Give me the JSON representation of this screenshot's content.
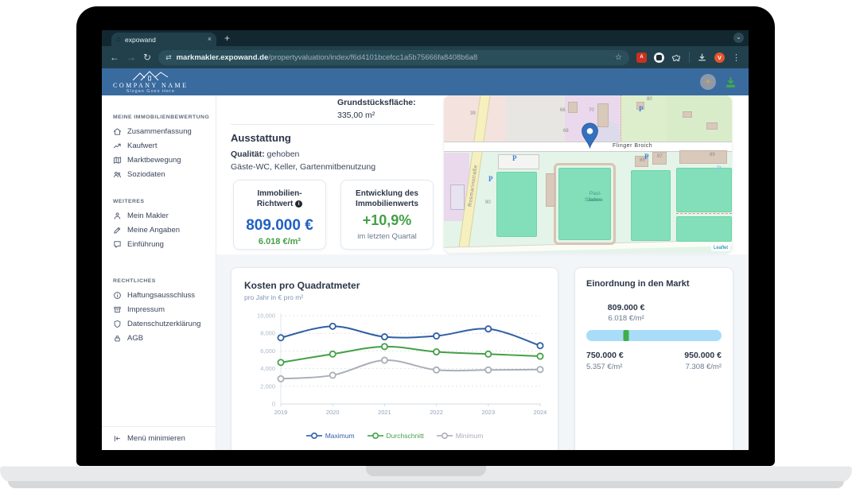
{
  "browser": {
    "tab_title": "expowand",
    "url_domain": "markmakler.expowand.de",
    "url_path": "/propertyvaluation/index/f6d4101bcefcc1a5b75666fa8408b6a8",
    "avatar_initial": "V",
    "pdf_ext_label": "A"
  },
  "header": {
    "company": "COMPANY NAME",
    "slogan": "Slogan Goes Here"
  },
  "sidebar": {
    "sections": [
      {
        "title": "MEINE IMMOBILIENBEWERTUNG",
        "items": [
          {
            "label": "Zusammenfassung",
            "icon": "home-icon"
          },
          {
            "label": "Kaufwert",
            "icon": "trend-icon"
          },
          {
            "label": "Marktbewegung",
            "icon": "map-icon"
          },
          {
            "label": "Soziodaten",
            "icon": "people-icon"
          }
        ]
      },
      {
        "title": "WEITERES",
        "items": [
          {
            "label": "Mein Makler",
            "icon": "person-icon"
          },
          {
            "label": "Meine Angaben",
            "icon": "pen-icon"
          },
          {
            "label": "Einführung",
            "icon": "chat-icon"
          }
        ]
      },
      {
        "title": "RECHTLICHES",
        "items": [
          {
            "label": "Haftungsausschluss",
            "icon": "info-icon"
          },
          {
            "label": "Impressum",
            "icon": "archive-icon"
          },
          {
            "label": "Datenschutzerklärung",
            "icon": "shield-icon"
          },
          {
            "label": "AGB",
            "icon": "lock-icon"
          }
        ]
      }
    ],
    "minimize_label": "Menü minimieren"
  },
  "property": {
    "area_label": "Grundstücksfläche:",
    "area_value": "335,00 m²",
    "features_title": "Ausstattung",
    "quality_label": "Qualität:",
    "quality_value": "gehoben",
    "features": "Gäste-WC, Keller, Gartenmitbenutzung"
  },
  "cards": {
    "richtwert": {
      "title_line1": "Immobilien-",
      "title_line2": "Richtwert",
      "info_glyph": "i",
      "value": "809.000 €",
      "per_sqm": "6.018 €/m²"
    },
    "entwicklung": {
      "title_line1": "Entwicklung des",
      "title_line2": "Immobilienwerts",
      "value": "+10,9%",
      "caption": "im letzten Quartal"
    }
  },
  "map": {
    "street": "Flinger Broich",
    "street_rotated": "Rosmarinstraße",
    "stadium_line1": "Paul-Janes-",
    "stadium_line2": "Stadion",
    "attribution": "Leaflet",
    "house_numbers": {
      "n39": "39",
      "n66": "66",
      "n68": "68",
      "n70": "70",
      "n80": "80",
      "n85": "85",
      "n87": "87",
      "n89": "89",
      "n90": "90"
    },
    "parking_glyph": "P"
  },
  "chart_data": {
    "type": "line",
    "title": "Kosten pro Quadratmeter",
    "subtitle": "pro Jahr in € pro m²",
    "categories": [
      "2019",
      "2020",
      "2021",
      "2022",
      "2023",
      "2024"
    ],
    "series": [
      {
        "name": "Maximum",
        "color": "#2e5fa3",
        "values": [
          7500,
          8800,
          7600,
          7700,
          8500,
          6600
        ]
      },
      {
        "name": "Durchschnitt",
        "color": "#43a047",
        "values": [
          4700,
          5650,
          6500,
          5900,
          5650,
          5400
        ]
      },
      {
        "name": "Minimum",
        "color": "#a9aeb8",
        "values": [
          2850,
          3250,
          4950,
          3850,
          3850,
          3900
        ]
      }
    ],
    "ylim": [
      0,
      10000
    ],
    "yticks": [
      0,
      2000,
      4000,
      6000,
      8000,
      10000
    ],
    "ytick_labels": [
      "0",
      "2,000",
      "4,000",
      "6,000",
      "8,000",
      "10,000"
    ],
    "grid": true,
    "legend_position": "bottom"
  },
  "market": {
    "title": "Einordnung in den Markt",
    "current_value": "809.000 €",
    "current_per_sqm": "6.018 €/m²",
    "marker_percent": 29.5,
    "min_value": "750.000 €",
    "min_per_sqm": "5.357 €/m²",
    "max_value": "950.000 €",
    "max_per_sqm": "7.308 €/m²",
    "bar_color": "#a9dcf8",
    "marker_color": "#3fae49"
  },
  "colors": {
    "accent_blue": "#2160c4",
    "positive_green": "#43a047",
    "header_blue": "#3a6b9f",
    "chrome_dark": "#132731"
  }
}
